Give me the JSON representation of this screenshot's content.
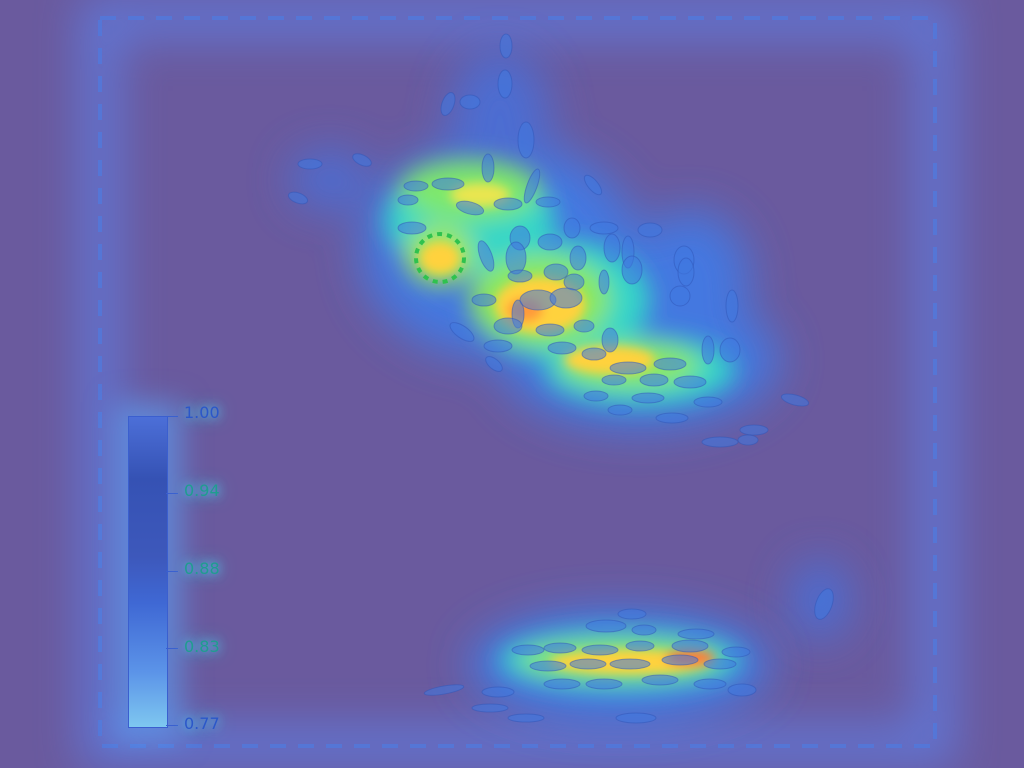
{
  "colorbar": {
    "ticks": [
      "1.00",
      "0.94",
      "0.88",
      "0.83",
      "0.77"
    ]
  },
  "colors": {
    "background": "#6a5a9e",
    "frame_glow": "#5a8cff",
    "heat_low": "#3f6be0",
    "heat_mid": "#38e0c0",
    "heat_high": "#ffcf3a",
    "heat_peak": "#ff7a3a"
  }
}
